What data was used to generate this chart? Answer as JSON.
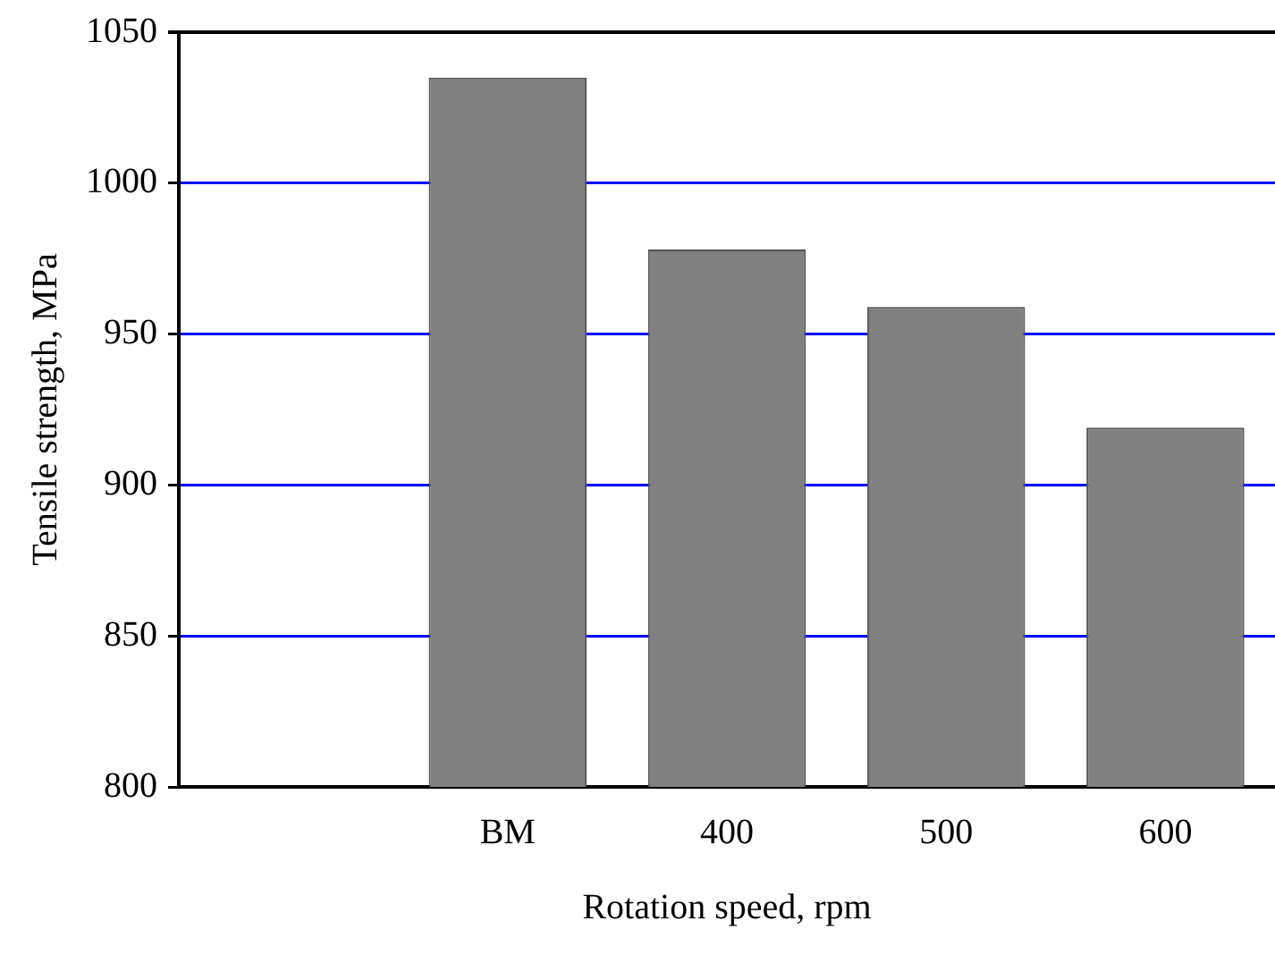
{
  "chart_data": {
    "type": "bar",
    "xlabel": "Rotation speed, rpm",
    "ylabel": "Tensile strength, MPa",
    "categories": [
      null,
      "BM",
      "400",
      "500",
      "600"
    ],
    "values": [
      null,
      1035,
      978,
      959,
      919
    ],
    "color": "#808080",
    "ylim": [
      800,
      1050
    ],
    "yticks": [
      800,
      850,
      900,
      950,
      1000,
      1050
    ],
    "grid": "y",
    "legend": false
  }
}
